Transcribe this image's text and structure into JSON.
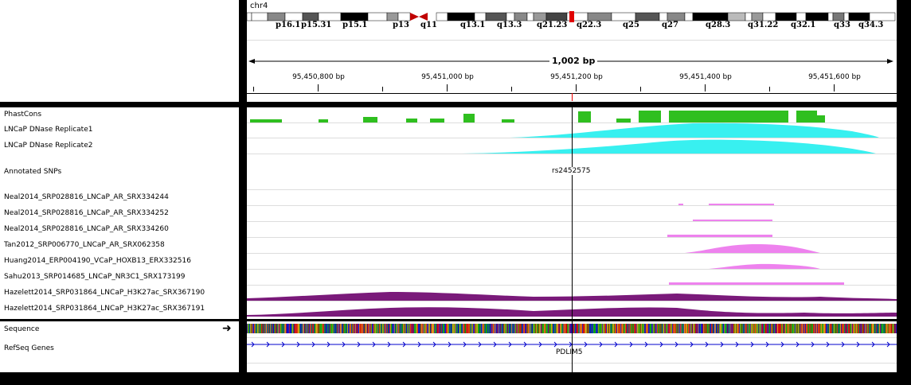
{
  "chromosome": {
    "name": "chr4",
    "band_labels": [
      "p16.1",
      "p15.31",
      "p15.1",
      "p13",
      "q11",
      "q13.1",
      "q13.3",
      "q21.23",
      "q22.3",
      "q25",
      "q27",
      "q28.3",
      "q31.22",
      "q32.1",
      "q33",
      "q34.3"
    ]
  },
  "ruler": {
    "span": "1,002 bp",
    "ticks": [
      "95,450,800 bp",
      "95,451,000 bp",
      "95,451,200 bp",
      "95,451,400 bp",
      "95,451,600 bp"
    ]
  },
  "tracks": {
    "phastcons": "PhastCons",
    "dnase1": "LNCaP DNase Replicate1",
    "dnase2": "LNCaP DNase Replicate2",
    "snps": "Annotated SNPs",
    "snp_id": "rs2452575",
    "t1": "Neal2014_SRP028816_LNCaP_AR_SRX334244",
    "t2": "Neal2014_SRP028816_LNCaP_AR_SRX334252",
    "t3": "Neal2014_SRP028816_LNCaP_AR_SRX334260",
    "t4": "Tan2012_SRP006770_LNCaP_AR_SRX062358",
    "t5": "Huang2014_ERP004190_VCaP_HOXB13_ERX332516",
    "t6": "Sahu2013_SRP014685_LNCaP_NR3C1_SRX173199",
    "t7": "Hazelett2014_SRP031864_LNCaP_H3K27ac_SRX367190",
    "t8": "Hazelett2014_SRP031864_LNCaP_H3K27ac_SRX367191"
  },
  "feature": {
    "sequence": "Sequence",
    "refseq": "RefSeq Genes",
    "gene": "PDLIM5"
  },
  "colors": {
    "phastcons": "#2fbf1f",
    "dnase": "#38f0f0",
    "chip_pink": "#ee82ee",
    "h3k27ac": "#7a1a7a",
    "centromere": "#c00000",
    "highlight_band": "#e00000",
    "gene": "#0000cc"
  }
}
